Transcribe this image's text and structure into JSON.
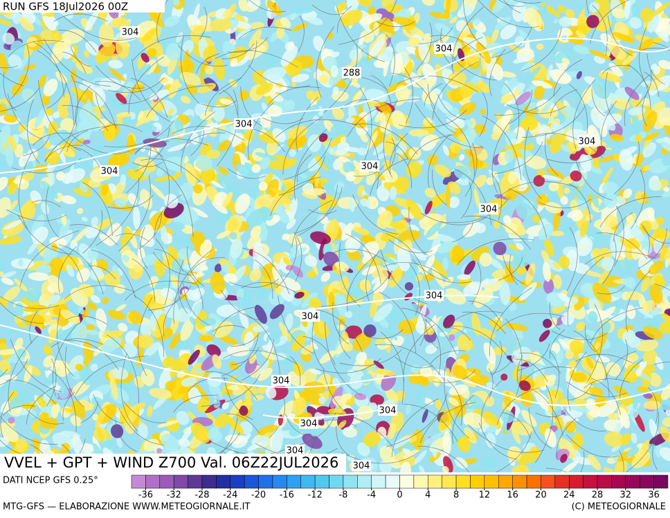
{
  "header": {
    "run": "RUN GFS 18Jul2026 00Z",
    "title": "VVEL + GPT + WIND Z700 Val. 06Z22JUL2026"
  },
  "contour_labels": [
    304,
    304,
    288,
    304,
    304,
    304,
    304,
    304,
    304,
    304,
    304,
    304,
    304,
    304,
    304
  ],
  "colorbar": {
    "source": "DATI NCEP GFS 0.25°",
    "lim": [
      -38,
      38
    ],
    "ticks": [
      -36,
      -32,
      -28,
      -24,
      -20,
      -16,
      -12,
      -8,
      -4,
      0,
      4,
      8,
      12,
      16,
      20,
      24,
      28,
      32,
      36
    ],
    "colors": [
      "#c58ad6",
      "#b070c8",
      "#9a5cb8",
      "#8048a8",
      "#603898",
      "#402c90",
      "#2030a0",
      "#1840c0",
      "#1858d8",
      "#2070e8",
      "#2888f0",
      "#30a0f0",
      "#40b8f0",
      "#50c8f0",
      "#70d8f0",
      "#90e4f0",
      "#b0eef4",
      "#d0f6f8",
      "#e8fafa",
      "#fffde0",
      "#fff8b0",
      "#fff080",
      "#ffe850",
      "#ffe020",
      "#ffd000",
      "#ffbf00",
      "#ffa800",
      "#ff9000",
      "#ff7000",
      "#f85020",
      "#e83020",
      "#d81c30",
      "#c81040",
      "#b80c48",
      "#a80850",
      "#980858",
      "#880860",
      "#780860"
    ]
  },
  "footer": {
    "left": "MTG-GFS — ELABORAZIONE WWW.METEOGIORNALE.IT",
    "right": "(C) METEOGIORNALE"
  }
}
